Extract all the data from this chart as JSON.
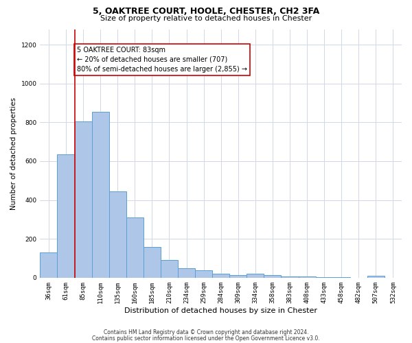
{
  "title": "5, OAKTREE COURT, HOOLE, CHESTER, CH2 3FA",
  "subtitle": "Size of property relative to detached houses in Chester",
  "xlabel": "Distribution of detached houses by size in Chester",
  "ylabel": "Number of detached properties",
  "categories": [
    "36sqm",
    "61sqm",
    "85sqm",
    "110sqm",
    "135sqm",
    "160sqm",
    "185sqm",
    "210sqm",
    "234sqm",
    "259sqm",
    "284sqm",
    "309sqm",
    "334sqm",
    "358sqm",
    "383sqm",
    "408sqm",
    "433sqm",
    "458sqm",
    "482sqm",
    "507sqm",
    "532sqm"
  ],
  "values": [
    130,
    635,
    805,
    855,
    445,
    310,
    160,
    90,
    50,
    40,
    20,
    15,
    20,
    15,
    5,
    5,
    2,
    2,
    1,
    10,
    0
  ],
  "bar_color": "#aec6e8",
  "bar_edge_color": "#5a9fd4",
  "vline_color": "#cc0000",
  "annotation_text": "5 OAKTREE COURT: 83sqm\n← 20% of detached houses are smaller (707)\n80% of semi-detached houses are larger (2,855) →",
  "annotation_box_color": "#ffffff",
  "annotation_box_edge": "#cc0000",
  "ylim": [
    0,
    1280
  ],
  "yticks": [
    0,
    200,
    400,
    600,
    800,
    1000,
    1200
  ],
  "footer1": "Contains HM Land Registry data © Crown copyright and database right 2024.",
  "footer2": "Contains public sector information licensed under the Open Government Licence v3.0.",
  "bg_color": "#ffffff",
  "grid_color": "#d0d8e8",
  "title_fontsize": 9,
  "subtitle_fontsize": 8,
  "ylabel_fontsize": 7.5,
  "xlabel_fontsize": 8,
  "tick_fontsize": 6.5,
  "annotation_fontsize": 7,
  "footer_fontsize": 5.5
}
